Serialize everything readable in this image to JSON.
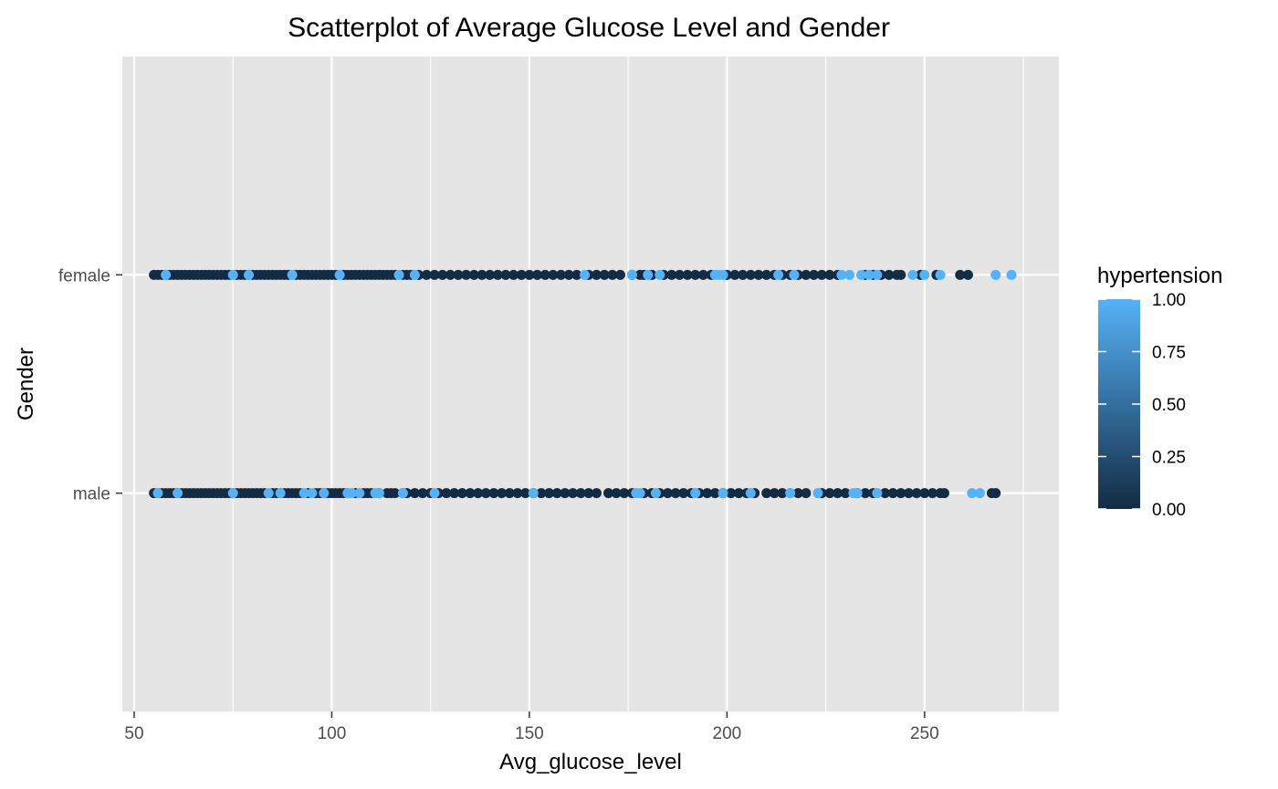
{
  "chart_data": {
    "type": "scatter",
    "title": "Scatterplot of Average Glucose Level and Gender",
    "xlabel": "Avg_glucose_level",
    "ylabel": "Gender",
    "xlim": [
      47,
      284
    ],
    "x_ticks": [
      50,
      100,
      150,
      200,
      250
    ],
    "x_tick_labels": [
      "50",
      "100",
      "150",
      "200",
      "250"
    ],
    "y_categories": [
      "male",
      "female"
    ],
    "grid": true,
    "panel_background": "#e5e5e5",
    "grid_color": "#ffffff",
    "legend": {
      "title": "hypertension",
      "placement": "right",
      "low": 0,
      "high": 1,
      "low_color": "#132b43",
      "high_color": "#56b1f7",
      "breaks": [
        1.0,
        0.75,
        0.5,
        0.25,
        0.0
      ],
      "break_labels": [
        "1.00",
        "0.75",
        "0.50",
        "0.25",
        "0.00"
      ]
    },
    "series": [
      {
        "category": "female",
        "hypertension_0_x": [
          55,
          56,
          57,
          58,
          59,
          60,
          61,
          62,
          63,
          64,
          65,
          66,
          67,
          68,
          69,
          70,
          71,
          72,
          73,
          74,
          76,
          77,
          78,
          79,
          80,
          81,
          82,
          83,
          84,
          85,
          86,
          87,
          88,
          89,
          91,
          92,
          93,
          94,
          95,
          96,
          97,
          98,
          99,
          100,
          101,
          103,
          104,
          105,
          106,
          107,
          108,
          109,
          110,
          111,
          112,
          113,
          114,
          115,
          116,
          118,
          119,
          120,
          122,
          124,
          126,
          128,
          130,
          132,
          134,
          136,
          138,
          140,
          142,
          144,
          146,
          148,
          150,
          152,
          154,
          156,
          158,
          160,
          162,
          165,
          167,
          169,
          171,
          173,
          176,
          178,
          179,
          181,
          184,
          186,
          188,
          190,
          192,
          194,
          196,
          200,
          202,
          204,
          206,
          208,
          210,
          212,
          214,
          216,
          218,
          220,
          222,
          224,
          226,
          228,
          235,
          237,
          239,
          241,
          243,
          244,
          249,
          253,
          259,
          261
        ],
        "hypertension_1_x": [
          58,
          75,
          79,
          90,
          102,
          117,
          121,
          164,
          176,
          180,
          183,
          197,
          198,
          199,
          213,
          217,
          229,
          231,
          234,
          236,
          238,
          247,
          250,
          254,
          268,
          272
        ]
      },
      {
        "category": "male",
        "hypertension_0_x": [
          55,
          56,
          57,
          58,
          59,
          60,
          61,
          62,
          63,
          64,
          65,
          66,
          67,
          68,
          69,
          70,
          71,
          72,
          73,
          74,
          75,
          76,
          77,
          78,
          79,
          80,
          81,
          82,
          83,
          85,
          86,
          87,
          88,
          89,
          90,
          91,
          92,
          94,
          96,
          97,
          98,
          99,
          100,
          101,
          102,
          103,
          104,
          106,
          108,
          109,
          110,
          112,
          114,
          115,
          116,
          118,
          119,
          121,
          123,
          125,
          127,
          129,
          131,
          133,
          135,
          137,
          139,
          141,
          143,
          145,
          147,
          149,
          151,
          153,
          155,
          157,
          159,
          161,
          163,
          165,
          167,
          170,
          172,
          174,
          176,
          179,
          181,
          183,
          185,
          187,
          189,
          191,
          193,
          195,
          197,
          199,
          201,
          203,
          205,
          207,
          210,
          212,
          214,
          216,
          218,
          220,
          224,
          226,
          228,
          230,
          233,
          235,
          237,
          240,
          242,
          244,
          246,
          248,
          250,
          252,
          254,
          255,
          267,
          268
        ],
        "hypertension_1_x": [
          56,
          61,
          75,
          84,
          87,
          93,
          95,
          98,
          104,
          105,
          107,
          111,
          112,
          118,
          126,
          151,
          177,
          178,
          182,
          192,
          199,
          206,
          216,
          223,
          232,
          233,
          238,
          262,
          264
        ]
      }
    ]
  }
}
